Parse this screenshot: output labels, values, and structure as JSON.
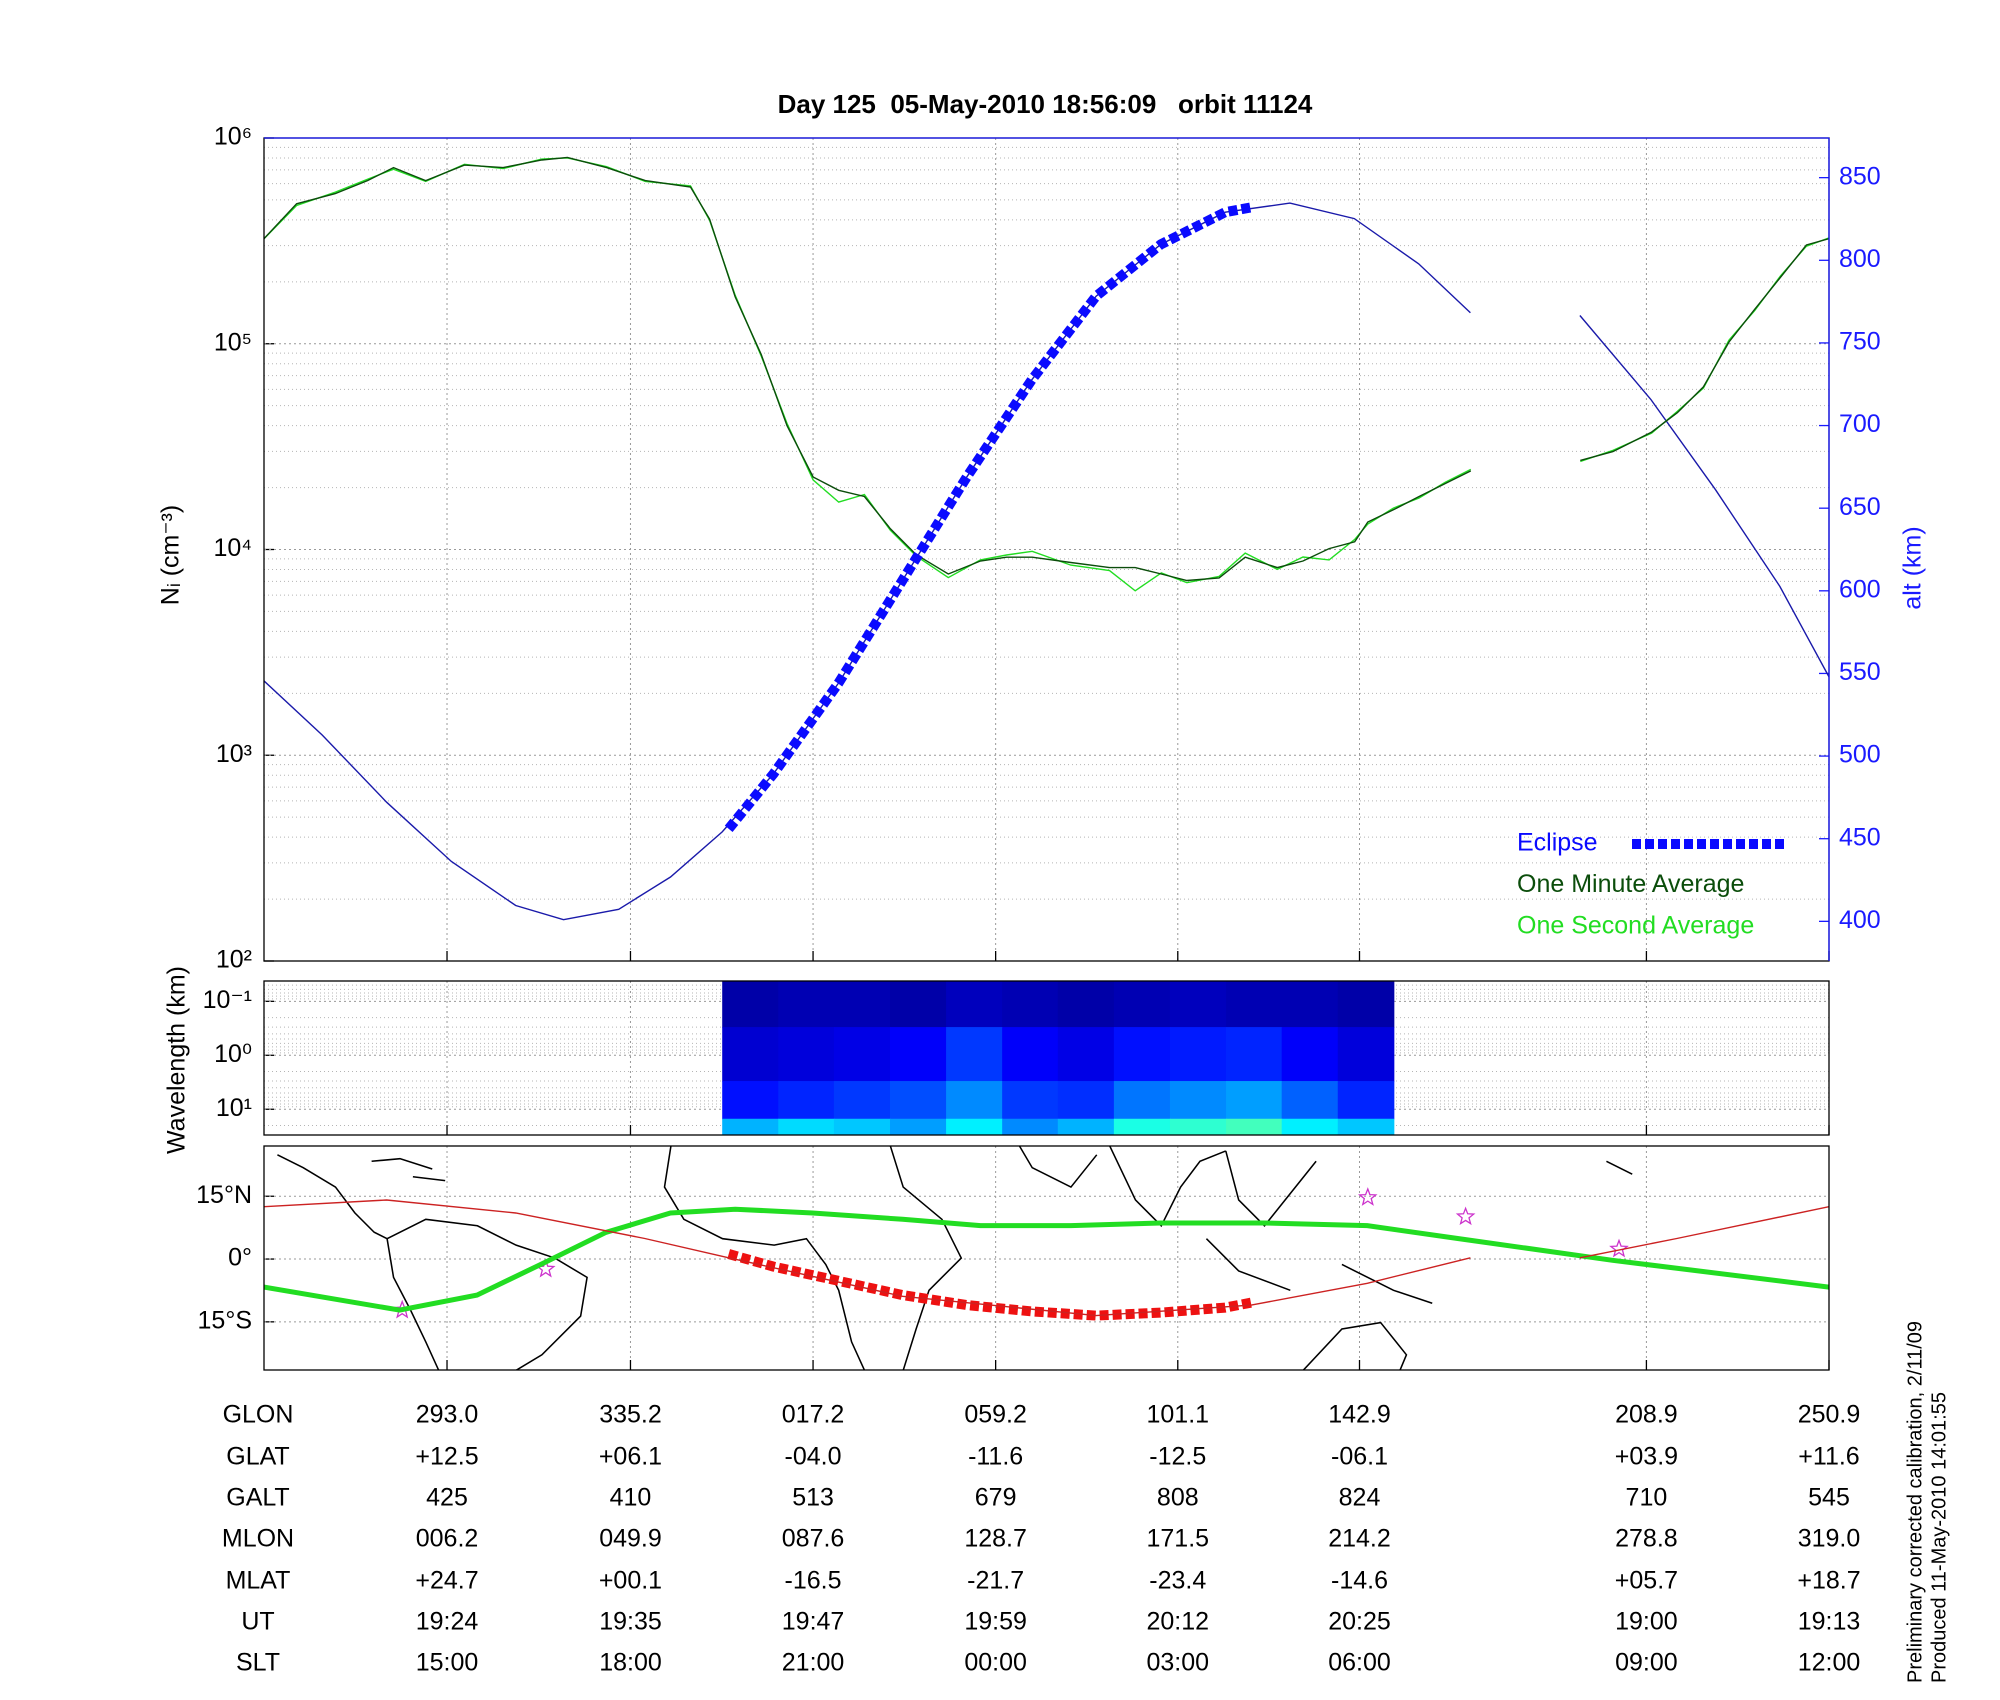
{
  "chart_data": [
    {
      "type": "line",
      "title": "Day 125  05-May-2010 18:56:09   orbit 11124",
      "ylabel": "Nᵢ (cm⁻³)",
      "y2label": "alt (km)",
      "xlim": [
        250.9,
        610.9
      ],
      "xticks": [
        293.0,
        335.2,
        377.2,
        419.2,
        461.1,
        502.9,
        568.9,
        610.9
      ],
      "ylim": [
        100,
        1000000
      ],
      "log_y": true,
      "yticks": [
        {
          "value": 100,
          "label": "10²"
        },
        {
          "value": 1000,
          "label": "10³"
        },
        {
          "value": 10000,
          "label": "10⁴"
        },
        {
          "value": 100000,
          "label": "10⁵"
        },
        {
          "value": 1000000,
          "label": "10⁶"
        }
      ],
      "y2lim": [
        376,
        874
      ],
      "y2ticks": [
        400,
        450,
        500,
        550,
        600,
        650,
        700,
        750,
        800,
        850
      ],
      "y2color": "#1a1aff",
      "grid": true,
      "legend": "lower right",
      "x": [
        250.9,
        258.4,
        267.3,
        274.7,
        280.7,
        288.1,
        297.0,
        305.9,
        314.8,
        320.7,
        329.7,
        338.6,
        349.0,
        353.4,
        359.3,
        365.3,
        371.2,
        377.2,
        383.1,
        389.0,
        395.0,
        400.9,
        408.3,
        415.7,
        421.7,
        427.6,
        436.5,
        445.4,
        451.3,
        457.3,
        463.2,
        470.6,
        476.6,
        484.0,
        489.9,
        495.9,
        501.8,
        504.8,
        510.7,
        516.6,
        522.6,
        528.5,
        541.0,
        553.7,
        561.2,
        570.1,
        576.0,
        582.0,
        587.9,
        593.8,
        599.7,
        605.7,
        610.9
      ],
      "series": [
        {
          "name": "Eclipse",
          "color": "#0a0aff",
          "axis": "y2",
          "style": "dashed",
          "x": [
            357.8,
            368.1,
            383.0,
            397.8,
            412.6,
            427.5,
            442.3,
            457.2,
            472.0,
            478.0
          ],
          "values": [
            456,
            489.3,
            544.0,
            606.5,
            669.0,
            727.6,
            778.3,
            809.6,
            829.1,
            832
          ]
        },
        {
          "name": "One Minute Average",
          "color": "#0b4d0b",
          "values": [
            324000,
            479000,
            537000,
            621000,
            718000,
            621000,
            738000,
            718000,
            782000,
            805000,
            718000,
            621000,
            578000,
            403000,
            169000,
            88500,
            40000,
            22500,
            19400,
            18100,
            12600,
            9440,
            7600,
            8790,
            9170,
            9170,
            8650,
            8170,
            8170,
            7600,
            7070,
            7280,
            9170,
            8170,
            8790,
            10100,
            10900,
            13600,
            15600,
            18100,
            20900,
            24100,
            null,
            27100,
            29900,
            37200,
            46200,
            61700,
            102000,
            147000,
            210000,
            302000,
            324000
          ]
        },
        {
          "name": "One Second Average",
          "color": "#22dd22",
          "values": [
            324000,
            470000,
            545000,
            630000,
            705000,
            615000,
            745000,
            710000,
            790000,
            800000,
            725000,
            615000,
            585000,
            398000,
            172000,
            87000,
            41000,
            21800,
            17000,
            18500,
            12400,
            9300,
            7300,
            8900,
            9400,
            9800,
            8400,
            7900,
            6300,
            7700,
            6900,
            7400,
            9600,
            8000,
            9200,
            8900,
            11200,
            13300,
            15900,
            17800,
            21200,
            24500,
            null,
            26800,
            30300,
            36800,
            46900,
            60900,
            104000,
            145000,
            213000,
            298000,
            327000
          ]
        },
        {
          "color": "#1a1aaa",
          "axis": "y2",
          "x": [
            250.9,
            264.3,
            279.1,
            294.0,
            308.8,
            319.8,
            332.5,
            344.4,
            356.3,
            368.1,
            383.0,
            397.8,
            412.6,
            427.5,
            442.3,
            457.2,
            472.0,
            486.9,
            501.7,
            516.5,
            528.4,
            541.0,
            553.6,
            569.9,
            584.8,
            599.6,
            610.9
          ],
          "values": [
            545.5,
            512.7,
            472.1,
            436.2,
            409.6,
            401.0,
            407.3,
            426.8,
            454.1,
            489.3,
            544.0,
            606.5,
            669.0,
            727.6,
            778.3,
            809.6,
            829.1,
            834.6,
            825.2,
            797.9,
            768.2,
            null,
            766.6,
            715.8,
            661.2,
            602.6,
            547.9
          ]
        }
      ]
    },
    {
      "type": "heatmap",
      "ylabel": "Wavelength (km)",
      "ylim": [
        0.042,
        30
      ],
      "log_y": true,
      "y_reversed": true,
      "yticks": [
        {
          "value": 0.1,
          "label": "10⁻¹"
        },
        {
          "value": 1,
          "label": "10⁰"
        },
        {
          "value": 10,
          "label": "10¹"
        }
      ],
      "grid": true,
      "colormap": "jet",
      "x_edges": [
        356.3,
        369.2,
        382.0,
        394.9,
        407.8,
        420.7,
        433.5,
        446.4,
        459.3,
        472.2,
        485.0,
        497.9,
        510.8
      ],
      "y_edges": [
        0.042,
        0.3,
        3,
        15,
        30
      ],
      "z": [
        [
          0.04,
          0.05,
          0.05,
          0.04,
          0.06,
          0.05,
          0.04,
          0.05,
          0.06,
          0.05,
          0.05,
          0.04
        ],
        [
          0.08,
          0.09,
          0.1,
          0.12,
          0.18,
          0.12,
          0.1,
          0.14,
          0.15,
          0.16,
          0.12,
          0.09
        ],
        [
          0.14,
          0.16,
          0.18,
          0.2,
          0.26,
          0.18,
          0.17,
          0.24,
          0.26,
          0.28,
          0.22,
          0.16
        ],
        [
          0.3,
          0.34,
          0.32,
          0.28,
          0.36,
          0.26,
          0.3,
          0.4,
          0.42,
          0.44,
          0.36,
          0.32
        ]
      ]
    },
    {
      "type": "map",
      "ylim": [
        -26.5,
        27
      ],
      "yticks": [
        {
          "value": 15,
          "label": "15°N"
        },
        {
          "value": 0,
          "label": "0°"
        },
        {
          "value": -15,
          "label": "15°S"
        }
      ],
      "grid": true,
      "series": [
        {
          "color": "#cc2222",
          "x": [
            250.9,
            279.1,
            308.8,
            338.5,
            357.8,
            397.8,
            442.3,
            478.0,
            504.7,
            528.4,
            541.0,
            553.6,
            575.9,
            610.9
          ],
          "values": [
            12.5,
            14.1,
            11.0,
            4.9,
            0.3,
            -8.9,
            -13.5,
            -11.0,
            -5.8,
            0.3,
            null,
            0.3,
            4.9,
            12.5
          ]
        },
        {
          "color": "#22dd22",
          "style": "thick",
          "x": [
            250.9,
            282.1,
            299.9,
            314.7,
            329.6,
            344.4,
            359.3,
            377.1,
            397.8,
            415.7,
            436.5,
            457.2,
            480.9,
            504.7,
            525.5,
            561.1,
            610.9
          ],
          "values": [
            -6.7,
            -12.2,
            -8.6,
            -1.2,
            6.4,
            11.0,
            11.9,
            11.0,
            9.5,
            8.0,
            8.0,
            8.6,
            8.6,
            8.0,
            4.9,
            -0.3,
            -6.7
          ]
        },
        {
          "color": "#ee1111",
          "style": "dashed",
          "x": [
            357.8,
            368.1,
            383.0,
            397.8,
            412.6,
            427.5,
            442.3,
            457.2,
            472.0,
            478.0
          ],
          "values": [
            1.2,
            -1.8,
            -5.2,
            -8.6,
            -11.0,
            -12.5,
            -13.5,
            -12.8,
            -11.6,
            -10.4
          ]
        },
        {
          "color": "#cc33cc",
          "marker": "star",
          "x": [
            282.7,
            315.7,
            504.8,
            527.3,
            562.6
          ],
          "values": [
            -12.2,
            -2.4,
            14.7,
            10.1,
            2.4
          ]
        }
      ]
    }
  ],
  "table": {
    "rows": [
      {
        "label": "GLON",
        "values": [
          "293.0",
          "335.2",
          "017.2",
          "059.2",
          "101.1",
          "142.9",
          "208.9",
          "250.9"
        ]
      },
      {
        "label": "GLAT",
        "values": [
          "+12.5",
          "+06.1",
          "-04.0",
          "-11.6",
          "-12.5",
          "-06.1",
          "+03.9",
          "+11.6"
        ]
      },
      {
        "label": "GALT",
        "values": [
          "425",
          "410",
          "513",
          "679",
          "808",
          "824",
          "710",
          "545"
        ]
      },
      {
        "label": "MLON",
        "values": [
          "006.2",
          "049.9",
          "087.6",
          "128.7",
          "171.5",
          "214.2",
          "278.8",
          "319.0"
        ]
      },
      {
        "label": "MLAT",
        "values": [
          "+24.7",
          "+00.1",
          "-16.5",
          "-21.7",
          "-23.4",
          "-14.6",
          "+05.7",
          "+18.7"
        ]
      },
      {
        "label": "UT",
        "values": [
          "19:24",
          "19:35",
          "19:47",
          "19:59",
          "20:12",
          "20:25",
          "19:00",
          "19:13"
        ]
      },
      {
        "label": "SLT",
        "values": [
          "15:00",
          "18:00",
          "21:00",
          "00:00",
          "03:00",
          "06:00",
          "09:00",
          "12:00"
        ]
      }
    ]
  },
  "footer": [
    "Preliminary corrected calibration, 2/11/09",
    "Produced 11-May-2010 14:01:55"
  ]
}
